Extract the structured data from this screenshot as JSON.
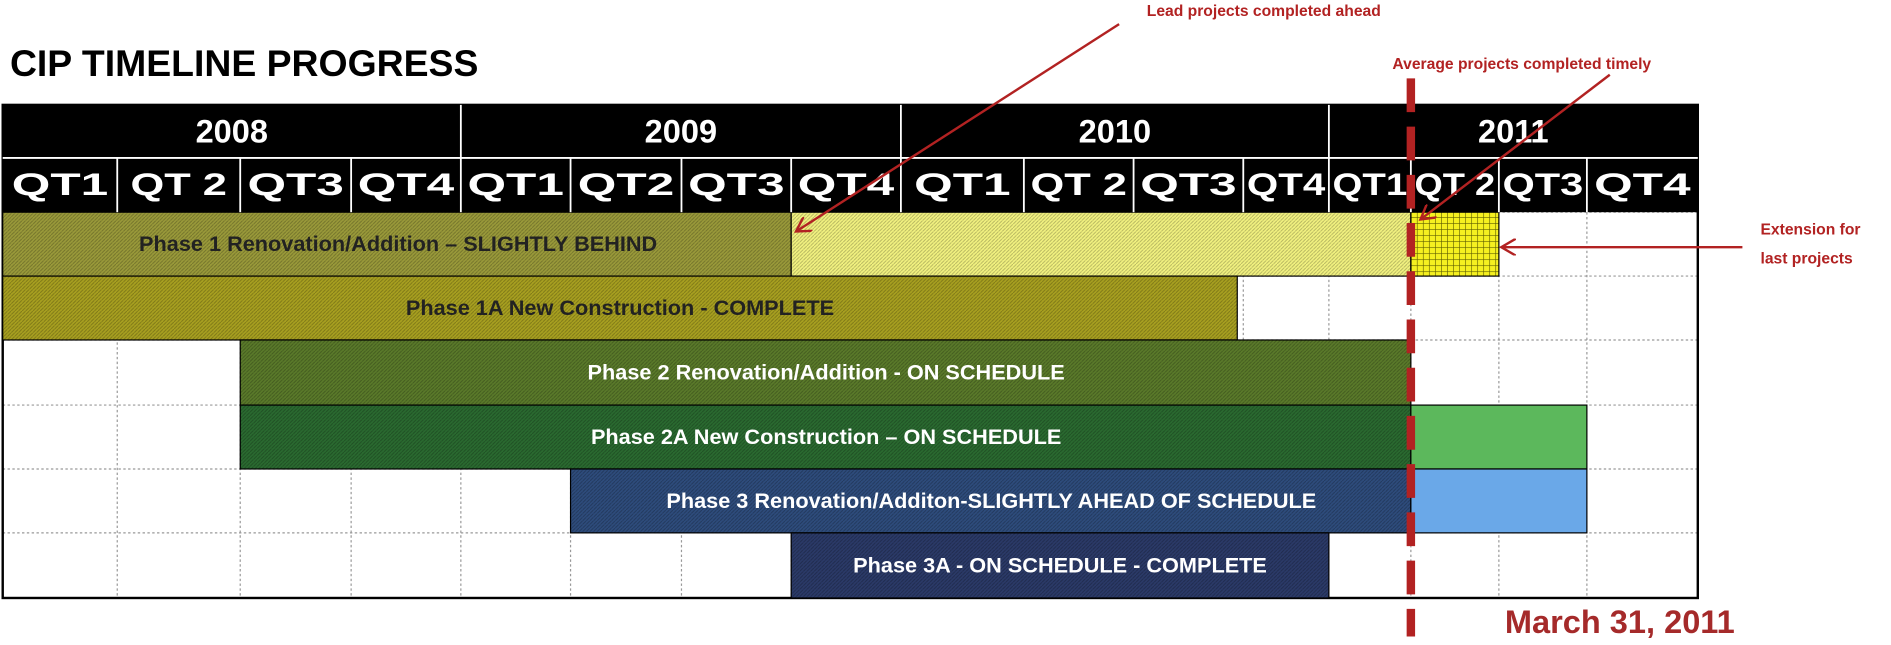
{
  "title": "CIP TIMELINE PROGRESS",
  "years": [
    "2008",
    "2009",
    "2010",
    "2011"
  ],
  "quarters": [
    "QT1",
    "QT 2",
    "QT3",
    "QT4",
    "QT1",
    "QT2",
    "QT3",
    "QT4",
    "QT1",
    "QT 2",
    "QT3",
    "QT4",
    "QT1",
    "QT 2",
    "QT3",
    "QT4"
  ],
  "bars": [
    {
      "label": "Phase 1 Renovation/Addition – SLIGHTLY BEHIND"
    },
    {
      "label": "Phase 1A New Construction - COMPLETE"
    },
    {
      "label": "Phase 2 Renovation/Addition - ON SCHEDULE"
    },
    {
      "label": "Phase 2A New Construction – ON SCHEDULE"
    },
    {
      "label": "Phase 3 Renovation/Additon-SLIGHTLY AHEAD OF SCHEDULE"
    },
    {
      "label": "Phase 3A - ON SCHEDULE - COMPLETE"
    }
  ],
  "annotations": {
    "lead": "Lead projects completed ahead",
    "average": "Average projects completed timely",
    "extension": [
      "Extension for",
      "last projects"
    ],
    "date": "March 31, 2011"
  }
}
